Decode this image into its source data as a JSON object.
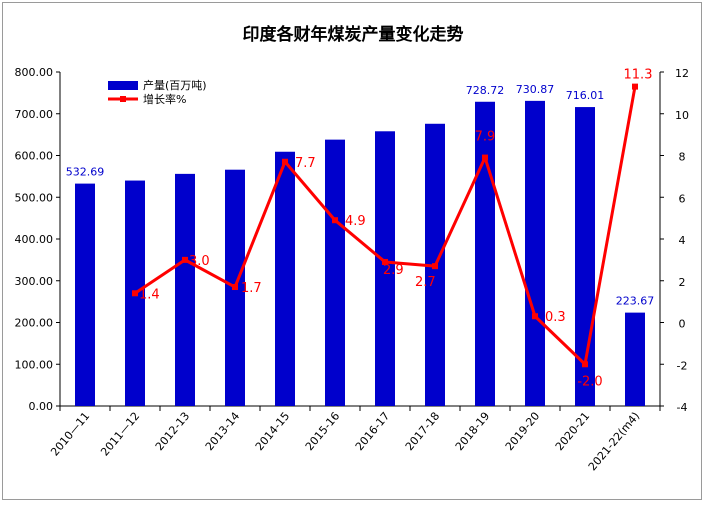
{
  "chart_data": {
    "type": "bar",
    "title": "印度各财年煤炭产量变化走势",
    "categories": [
      "2010—11",
      "2011—12",
      "2012-13",
      "2013-14",
      "2014-15",
      "2015-16",
      "2016-17",
      "2017-18",
      "2018-19",
      "2019-20",
      "2020-21",
      "2021-22(m4)"
    ],
    "series": [
      {
        "name": "产量(百万吨)",
        "type": "bar",
        "axis": "left",
        "color": "#0000cc",
        "values": [
          532.69,
          540,
          556,
          566,
          609,
          638,
          658,
          676,
          728.72,
          730.87,
          716.01,
          223.67
        ],
        "labels": [
          "532.69",
          "",
          "",
          "",
          "",
          "",
          "",
          "",
          "728.72",
          "730.87",
          "716.01",
          "223.67"
        ]
      },
      {
        "name": "增长率%",
        "type": "line",
        "axis": "right",
        "color": "#ff0000",
        "values": [
          null,
          1.4,
          3.0,
          1.7,
          7.7,
          4.9,
          2.9,
          2.7,
          7.9,
          0.3,
          -2.0,
          11.3
        ],
        "labels": [
          "",
          "1.4",
          "3.0",
          "1.7",
          "7.7",
          "4.9",
          "2.9",
          "2.7",
          "7.9",
          "0.3",
          "-2.0",
          "11.3"
        ]
      }
    ],
    "y_left": {
      "ylim": [
        0,
        800
      ],
      "ticks": [
        "0.00",
        "100.00",
        "200.00",
        "300.00",
        "400.00",
        "500.00",
        "600.00",
        "700.00",
        "800.00"
      ]
    },
    "y_right": {
      "ylim": [
        -4,
        12
      ],
      "ticks": [
        "-4",
        "-2",
        "0",
        "2",
        "4",
        "6",
        "8",
        "10",
        "12"
      ]
    },
    "grid": false,
    "legend": "top-left"
  }
}
